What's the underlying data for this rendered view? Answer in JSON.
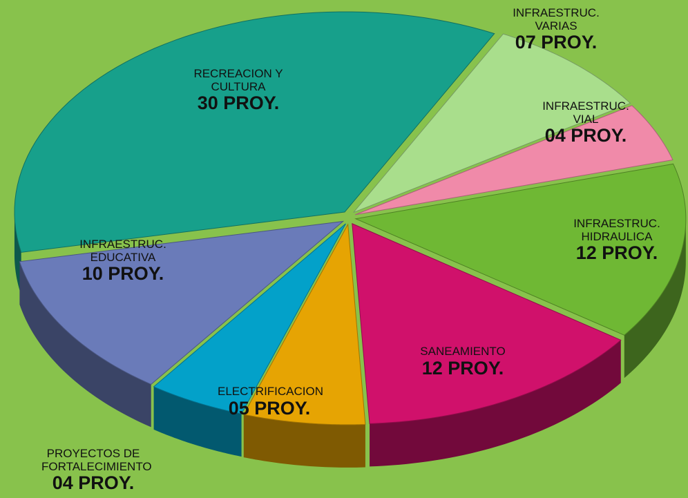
{
  "chart_data": {
    "type": "pie",
    "categories": [
      "RECREACION Y CULTURA",
      "INFRAESTRUC. VARIAS",
      "INFRAESTRUC. VIAL",
      "INFRAESTRUC. HIDRAULICA",
      "SANEAMIENTO",
      "ELECTRIFICACION",
      "PROYECTOS DE FORTALECIMIENTO",
      "INFRAESTRUC. EDUCATIVA"
    ],
    "values": [
      30,
      7,
      4,
      12,
      12,
      5,
      4,
      10
    ],
    "value_labels": [
      "30 PROY.",
      "07 PROY.",
      "04 PROY.",
      "12 PROY.",
      "12 PROY.",
      "05 PROY.",
      "04 PROY.",
      "10 PROY."
    ],
    "colors": [
      "#17a08b",
      "#a9de8c",
      "#f08aa9",
      "#6fb834",
      "#d0116b",
      "#e6a403",
      "#03a1c9",
      "#6a7bb9"
    ]
  }
}
